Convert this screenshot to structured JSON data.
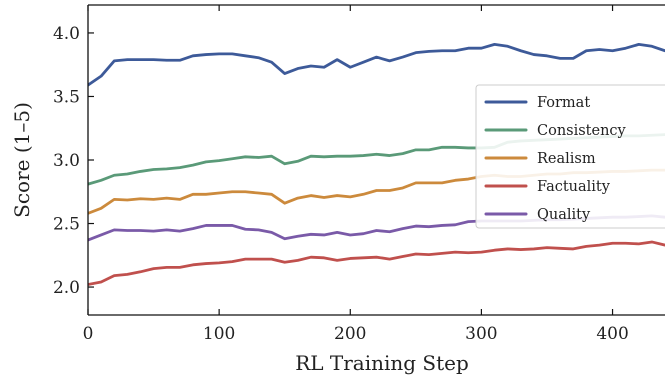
{
  "chart_data": {
    "type": "line",
    "xlabel": "RL Training Step",
    "ylabel": "Score (1–5)",
    "xlim": [
      0,
      440
    ],
    "ylim": [
      1.78,
      4.22
    ],
    "xticks": [
      0,
      100,
      200,
      300,
      400
    ],
    "yticks": [
      2.0,
      2.5,
      3.0,
      3.5,
      4.0
    ],
    "ytick_labels": [
      "2.0",
      "2.5",
      "3.0",
      "3.5",
      "4.0"
    ],
    "grid": false,
    "legend": "right",
    "x": [
      0,
      10,
      20,
      30,
      40,
      50,
      60,
      70,
      80,
      90,
      100,
      110,
      120,
      130,
      140,
      150,
      160,
      170,
      180,
      190,
      200,
      210,
      220,
      230,
      240,
      250,
      260,
      270,
      280,
      290,
      300,
      310,
      320,
      330,
      340,
      350,
      360,
      370,
      380,
      390,
      400,
      410,
      420,
      430,
      440
    ],
    "series": [
      {
        "name": "Format",
        "color": "#3d5a99",
        "values": [
          3.59,
          3.66,
          3.78,
          3.79,
          3.79,
          3.79,
          3.785,
          3.785,
          3.82,
          3.83,
          3.835,
          3.835,
          3.82,
          3.805,
          3.77,
          3.68,
          3.72,
          3.74,
          3.73,
          3.79,
          3.73,
          3.77,
          3.81,
          3.78,
          3.81,
          3.845,
          3.855,
          3.86,
          3.86,
          3.88,
          3.88,
          3.91,
          3.895,
          3.86,
          3.83,
          3.82,
          3.8,
          3.8,
          3.86,
          3.87,
          3.86,
          3.88,
          3.91,
          3.895,
          3.86
        ]
      },
      {
        "name": "Consistency",
        "color": "#5a9a78",
        "values": [
          2.81,
          2.84,
          2.88,
          2.89,
          2.91,
          2.925,
          2.93,
          2.94,
          2.96,
          2.985,
          2.995,
          3.01,
          3.025,
          3.02,
          3.03,
          2.97,
          2.99,
          3.03,
          3.025,
          3.03,
          3.03,
          3.035,
          3.045,
          3.035,
          3.05,
          3.08,
          3.08,
          3.1,
          3.1,
          3.095,
          3.095,
          3.1,
          3.14,
          3.15,
          3.155,
          3.16,
          3.165,
          3.17,
          3.175,
          3.18,
          3.185,
          3.19,
          3.19,
          3.195,
          3.2
        ]
      },
      {
        "name": "Realism",
        "color": "#cc8a3c",
        "values": [
          2.58,
          2.62,
          2.69,
          2.685,
          2.695,
          2.69,
          2.7,
          2.69,
          2.73,
          2.73,
          2.74,
          2.75,
          2.75,
          2.74,
          2.73,
          2.66,
          2.7,
          2.72,
          2.705,
          2.72,
          2.71,
          2.73,
          2.76,
          2.76,
          2.78,
          2.82,
          2.82,
          2.82,
          2.84,
          2.85,
          2.87,
          2.88,
          2.87,
          2.87,
          2.88,
          2.89,
          2.89,
          2.9,
          2.9,
          2.905,
          2.91,
          2.91,
          2.915,
          2.92,
          2.92
        ]
      },
      {
        "name": "Factuality",
        "color": "#c0504d",
        "values": [
          2.02,
          2.04,
          2.09,
          2.1,
          2.12,
          2.145,
          2.155,
          2.155,
          2.175,
          2.185,
          2.19,
          2.2,
          2.22,
          2.22,
          2.22,
          2.195,
          2.21,
          2.235,
          2.23,
          2.21,
          2.225,
          2.23,
          2.235,
          2.22,
          2.24,
          2.26,
          2.255,
          2.265,
          2.275,
          2.27,
          2.275,
          2.29,
          2.3,
          2.295,
          2.3,
          2.31,
          2.305,
          2.3,
          2.32,
          2.33,
          2.345,
          2.345,
          2.34,
          2.355,
          2.33
        ]
      },
      {
        "name": "Quality",
        "color": "#7a5aa8",
        "values": [
          2.37,
          2.41,
          2.45,
          2.445,
          2.445,
          2.44,
          2.45,
          2.44,
          2.46,
          2.485,
          2.485,
          2.485,
          2.455,
          2.45,
          2.43,
          2.38,
          2.4,
          2.415,
          2.41,
          2.43,
          2.41,
          2.42,
          2.445,
          2.435,
          2.46,
          2.48,
          2.475,
          2.485,
          2.49,
          2.515,
          2.52,
          2.52,
          2.52,
          2.52,
          2.525,
          2.53,
          2.53,
          2.535,
          2.54,
          2.545,
          2.55,
          2.55,
          2.555,
          2.56,
          2.55
        ]
      }
    ]
  }
}
